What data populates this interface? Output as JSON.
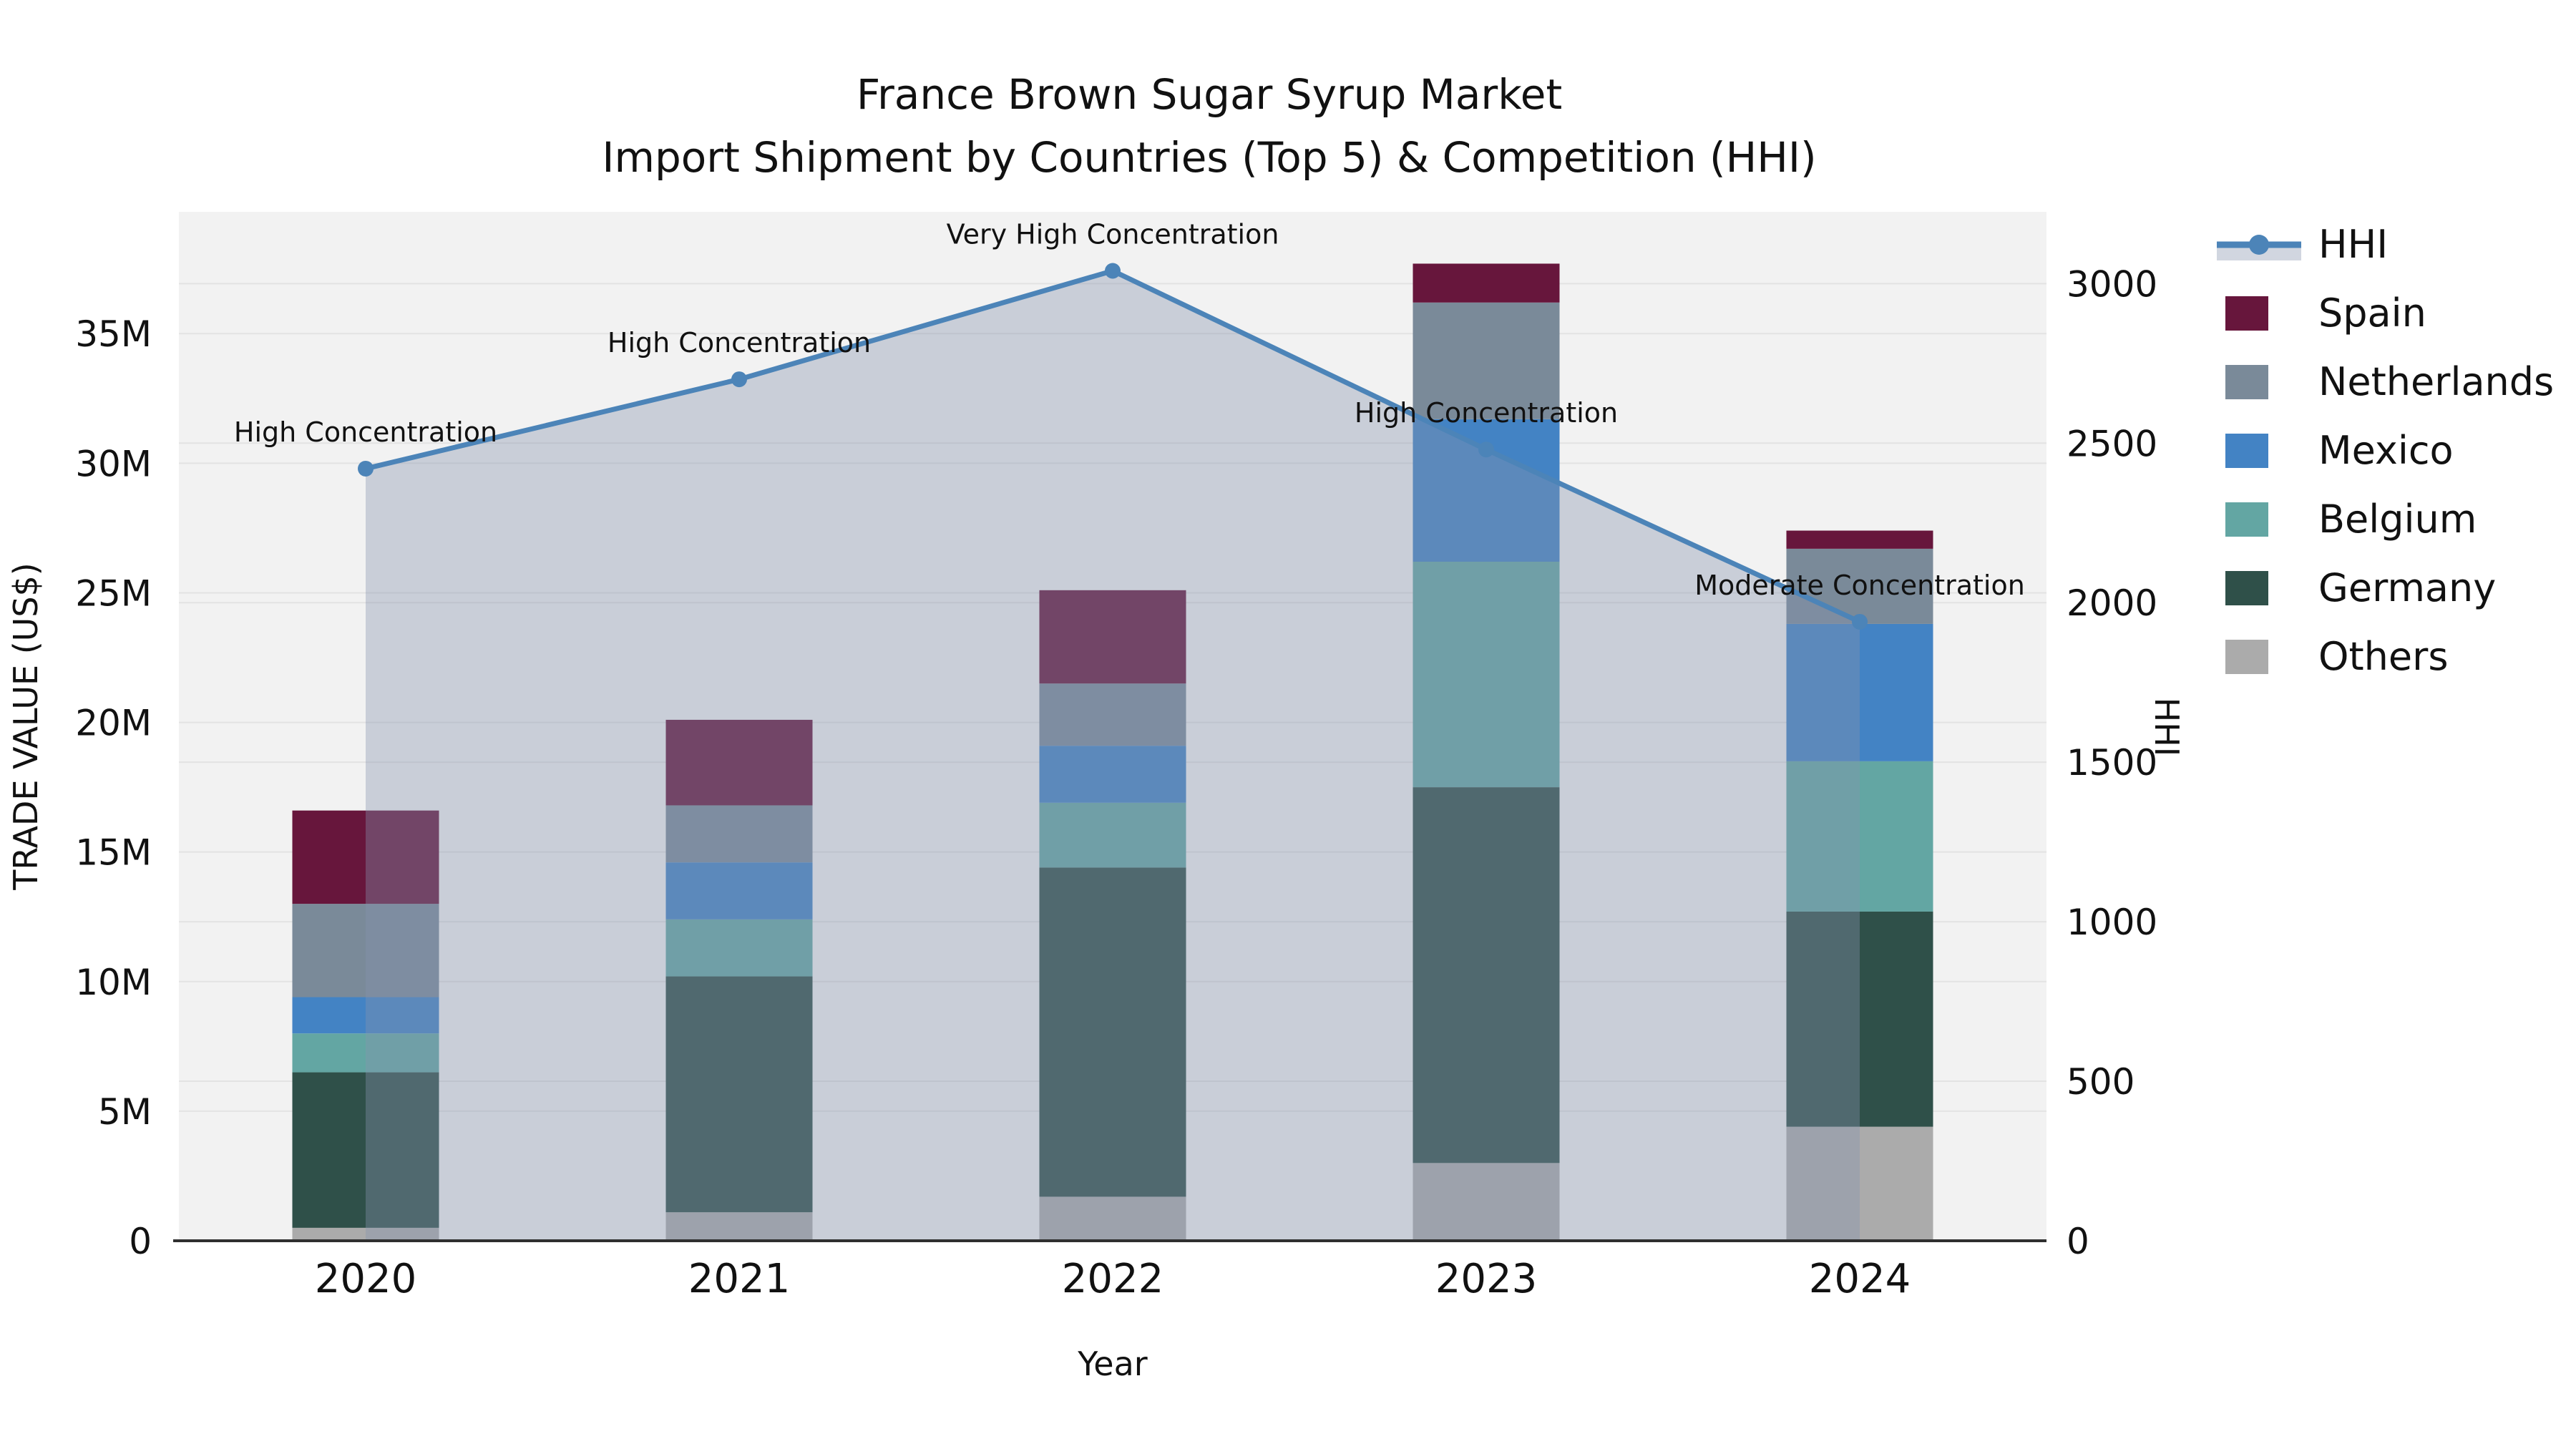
{
  "chart_data": {
    "type": "combo-stacked-bar-line",
    "title": "France Brown Sugar Syrup Market",
    "subtitle": "Import Shipment by Countries (Top 5) & Competition (HHI)",
    "xlabel": "Year",
    "ylabel_left": "TRADE VALUE (US$)",
    "ylabel_right": "HHI",
    "categories": [
      "2020",
      "2021",
      "2022",
      "2023",
      "2024"
    ],
    "values_unit": "million US$",
    "stack_order_bottom_to_top": [
      "Others",
      "Germany",
      "Belgium",
      "Mexico",
      "Netherlands",
      "Spain"
    ],
    "series": [
      {
        "name": "Others",
        "color": "#ABABAB",
        "values": [
          0.5,
          1.1,
          1.7,
          3.0,
          4.4
        ]
      },
      {
        "name": "Germany",
        "color": "#2F5049",
        "values": [
          6.0,
          9.1,
          12.7,
          14.5,
          8.3
        ]
      },
      {
        "name": "Belgium",
        "color": "#63A6A3",
        "values": [
          1.5,
          2.2,
          2.5,
          8.7,
          5.8
        ]
      },
      {
        "name": "Mexico",
        "color": "#4383C4",
        "values": [
          1.4,
          2.2,
          2.2,
          5.5,
          5.3
        ]
      },
      {
        "name": "Netherlands",
        "color": "#7A8A99",
        "values": [
          3.6,
          2.2,
          2.4,
          4.5,
          2.9
        ]
      },
      {
        "name": "Spain",
        "color": "#67163C",
        "values": [
          3.6,
          3.3,
          3.6,
          1.5,
          0.7
        ]
      }
    ],
    "bar_totals": [
      16.6,
      20.1,
      25.1,
      37.7,
      27.4
    ],
    "line_series": {
      "name": "HHI",
      "color": "#4C84B8",
      "fill_color": "#8593AD",
      "fill_opacity": 0.38,
      "values": [
        2420,
        2700,
        3040,
        2480,
        1940
      ]
    },
    "annotations": [
      "High Concentration",
      "High Concentration",
      "Very High Concentration",
      "High Concentration",
      "Moderate Concentration"
    ],
    "left_ticks": [
      "0",
      "5M",
      "10M",
      "15M",
      "20M",
      "25M",
      "30M",
      "35M"
    ],
    "left_tick_values": [
      0,
      5,
      10,
      15,
      20,
      25,
      30,
      35
    ],
    "right_ticks": [
      "0",
      "500",
      "1000",
      "1500",
      "2000",
      "2500",
      "3000"
    ],
    "right_tick_values": [
      0,
      500,
      1000,
      1500,
      2000,
      2500,
      3000
    ],
    "ylim_left": [
      0,
      39.7
    ],
    "ylim_right": [
      0,
      3225
    ],
    "grid": true,
    "legend_position": "right",
    "legend": [
      {
        "label": "HHI",
        "type": "line",
        "color": "#4C84B8"
      },
      {
        "label": "Spain",
        "type": "swatch",
        "color": "#67163C"
      },
      {
        "label": "Netherlands",
        "type": "swatch",
        "color": "#7A8A99"
      },
      {
        "label": "Mexico",
        "type": "swatch",
        "color": "#4383C4"
      },
      {
        "label": "Belgium",
        "type": "swatch",
        "color": "#63A6A3"
      },
      {
        "label": "Germany",
        "type": "swatch",
        "color": "#2F5049"
      },
      {
        "label": "Others",
        "type": "swatch",
        "color": "#ABABAB"
      }
    ],
    "style": {
      "plot_bg": "#F2F2F2",
      "grid_color": "#E3E3E3",
      "axis_line_color": "#2F2F2F"
    }
  }
}
